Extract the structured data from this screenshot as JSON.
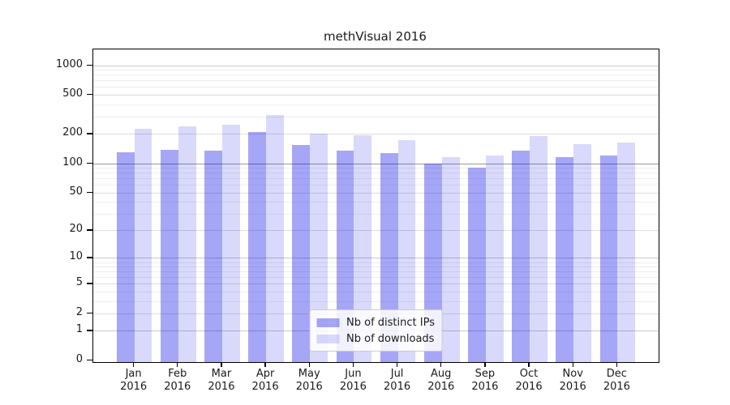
{
  "title": "methVisual 2016",
  "chart_data": {
    "type": "bar",
    "title": "methVisual 2016",
    "xlabel": "",
    "ylabel": "",
    "yscale": "log1p",
    "grid": "horizontal",
    "legend_position": "lower center",
    "ylim": [
      0,
      1450
    ],
    "y_ticks": [
      0,
      1,
      2,
      5,
      10,
      20,
      50,
      100,
      200,
      500,
      1000
    ],
    "categories": [
      "Jan 2016",
      "Feb 2016",
      "Mar 2016",
      "Apr 2016",
      "May 2016",
      "Jun 2016",
      "Jul 2016",
      "Aug 2016",
      "Sep 2016",
      "Oct 2016",
      "Nov 2016",
      "Dec 2016"
    ],
    "series": [
      {
        "name": "Nb of distinct IPs",
        "color": "rgba(0,0,230,0.35)",
        "swatch_hex": "#a6a6f2",
        "values": [
          130,
          137,
          135,
          210,
          153,
          135,
          127,
          100,
          90,
          135,
          116,
          120
        ]
      },
      {
        "name": "Nb of downloads",
        "color": "rgba(0,0,230,0.15)",
        "swatch_hex": "#d9d9f9",
        "values": [
          225,
          240,
          250,
          310,
          200,
          192,
          172,
          116,
          120,
          190,
          156,
          164
        ]
      }
    ],
    "gridline_colors": {
      "emphasized_100": "#9a9a9a",
      "decade": "#c9c9c9",
      "labeled": "#dcdcdc",
      "minor": "#eeeeee"
    }
  }
}
